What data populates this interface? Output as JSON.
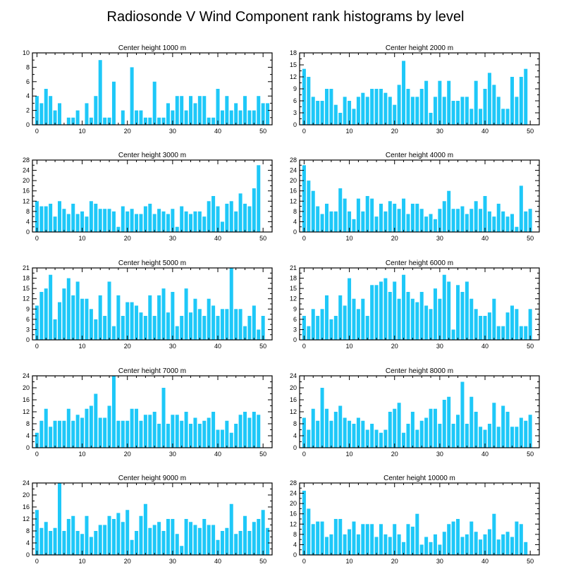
{
  "figure": {
    "title": "Radiosonde V Wind Component rank histograms by level",
    "bar_color": "#1ec8f8"
  },
  "chart_data": [
    {
      "type": "bar",
      "title": "Center height 1000 m",
      "x": [
        0,
        1,
        2,
        3,
        4,
        5,
        6,
        7,
        8,
        9,
        10,
        11,
        12,
        13,
        14,
        15,
        16,
        17,
        18,
        19,
        20,
        21,
        22,
        23,
        24,
        25,
        26,
        27,
        28,
        29,
        30,
        31,
        32,
        33,
        34,
        35,
        36,
        37,
        38,
        39,
        40,
        41,
        42,
        43,
        44,
        45,
        46,
        47,
        48,
        49,
        50,
        51
      ],
      "values": [
        4,
        3,
        5,
        4,
        2,
        3,
        0,
        1,
        1,
        2,
        0,
        3,
        1,
        4,
        9,
        1,
        1,
        6,
        0,
        2,
        0,
        8,
        2,
        2,
        1,
        1,
        6,
        1,
        1,
        3,
        2,
        4,
        4,
        2,
        4,
        3,
        4,
        4,
        1,
        1,
        5,
        2,
        4,
        2,
        3,
        2,
        4,
        2,
        2,
        4,
        3,
        3
      ],
      "xlim": [
        -1,
        52
      ],
      "ylim": [
        0,
        10
      ],
      "yticks": [
        0,
        2,
        4,
        6,
        8,
        10
      ],
      "xticks": [
        0,
        10,
        20,
        30,
        40,
        50
      ],
      "xlabel": "",
      "ylabel": ""
    },
    {
      "type": "bar",
      "title": "Center height 2000 m",
      "x": [
        0,
        1,
        2,
        3,
        4,
        5,
        6,
        7,
        8,
        9,
        10,
        11,
        12,
        13,
        14,
        15,
        16,
        17,
        18,
        19,
        20,
        21,
        22,
        23,
        24,
        25,
        26,
        27,
        28,
        29,
        30,
        31,
        32,
        33,
        34,
        35,
        36,
        37,
        38,
        39,
        40,
        41,
        42,
        43,
        44,
        45,
        46,
        47,
        48,
        49,
        50,
        51
      ],
      "values": [
        14,
        12,
        7,
        6,
        6,
        9,
        9,
        5,
        3,
        7,
        6,
        4,
        7,
        8,
        7,
        9,
        9,
        9,
        8,
        7,
        5,
        10,
        16,
        9,
        7,
        7,
        9,
        11,
        3,
        7,
        11,
        7,
        11,
        6,
        6,
        7,
        7,
        4,
        11,
        4,
        9,
        13,
        10,
        7,
        4,
        4,
        12,
        7,
        12,
        14,
        0,
        0
      ],
      "xlim": [
        -1,
        52
      ],
      "ylim": [
        0,
        18
      ],
      "yticks": [
        0,
        3,
        6,
        9,
        12,
        15,
        18
      ],
      "xticks": [
        0,
        10,
        20,
        30,
        40,
        50
      ],
      "xlabel": "",
      "ylabel": ""
    },
    {
      "type": "bar",
      "title": "Center height 3000 m",
      "x": [
        0,
        1,
        2,
        3,
        4,
        5,
        6,
        7,
        8,
        9,
        10,
        11,
        12,
        13,
        14,
        15,
        16,
        17,
        18,
        19,
        20,
        21,
        22,
        23,
        24,
        25,
        26,
        27,
        28,
        29,
        30,
        31,
        32,
        33,
        34,
        35,
        36,
        37,
        38,
        39,
        40,
        41,
        42,
        43,
        44,
        45,
        46,
        47,
        48,
        49,
        50,
        51
      ],
      "values": [
        12,
        10,
        10,
        11,
        6,
        12,
        9,
        7,
        11,
        7,
        8,
        6,
        12,
        11,
        9,
        9,
        9,
        8,
        2,
        10,
        8,
        9,
        7,
        7,
        10,
        11,
        7,
        9,
        8,
        7,
        9,
        2,
        10,
        8,
        7,
        8,
        8,
        6,
        12,
        14,
        10,
        4,
        11,
        12,
        8,
        15,
        11,
        10,
        17,
        26,
        0,
        0
      ],
      "xlim": [
        -1,
        52
      ],
      "ylim": [
        0,
        28
      ],
      "yticks": [
        0,
        4,
        8,
        12,
        16,
        20,
        24,
        28
      ],
      "xticks": [
        0,
        10,
        20,
        30,
        40,
        50
      ],
      "xlabel": "",
      "ylabel": ""
    },
    {
      "type": "bar",
      "title": "Center height 4000 m",
      "x": [
        0,
        1,
        2,
        3,
        4,
        5,
        6,
        7,
        8,
        9,
        10,
        11,
        12,
        13,
        14,
        15,
        16,
        17,
        18,
        19,
        20,
        21,
        22,
        23,
        24,
        25,
        26,
        27,
        28,
        29,
        30,
        31,
        32,
        33,
        34,
        35,
        36,
        37,
        38,
        39,
        40,
        41,
        42,
        43,
        44,
        45,
        46,
        47,
        48,
        49,
        50,
        51
      ],
      "values": [
        26,
        20,
        16,
        10,
        7,
        11,
        8,
        8,
        17,
        13,
        8,
        5,
        13,
        8,
        14,
        13,
        6,
        11,
        8,
        12,
        11,
        9,
        13,
        7,
        11,
        11,
        9,
        6,
        7,
        5,
        9,
        12,
        16,
        9,
        9,
        10,
        7,
        9,
        12,
        9,
        14,
        8,
        6,
        11,
        8,
        6,
        7,
        2,
        18,
        8,
        9,
        0
      ],
      "xlim": [
        -1,
        52
      ],
      "ylim": [
        0,
        28
      ],
      "yticks": [
        0,
        4,
        8,
        12,
        16,
        20,
        24,
        28
      ],
      "xticks": [
        0,
        10,
        20,
        30,
        40,
        50
      ],
      "xlabel": "",
      "ylabel": ""
    },
    {
      "type": "bar",
      "title": "Center height 5000 m",
      "x": [
        0,
        1,
        2,
        3,
        4,
        5,
        6,
        7,
        8,
        9,
        10,
        11,
        12,
        13,
        14,
        15,
        16,
        17,
        18,
        19,
        20,
        21,
        22,
        23,
        24,
        25,
        26,
        27,
        28,
        29,
        30,
        31,
        32,
        33,
        34,
        35,
        36,
        37,
        38,
        39,
        40,
        41,
        42,
        43,
        44,
        45,
        46,
        47,
        48,
        49,
        50,
        51
      ],
      "values": [
        10,
        14,
        15,
        19,
        6,
        11,
        15,
        18,
        13,
        17,
        12,
        12,
        9,
        6,
        13,
        7,
        17,
        4,
        13,
        7,
        11,
        11,
        10,
        8,
        7,
        13,
        7,
        13,
        15,
        8,
        14,
        4,
        7,
        15,
        8,
        12,
        9,
        7,
        12,
        10,
        7,
        9,
        9,
        21,
        9,
        9,
        4,
        7,
        10,
        3,
        7,
        0
      ],
      "xlim": [
        -1,
        52
      ],
      "ylim": [
        0,
        21
      ],
      "yticks": [
        0,
        3,
        6,
        9,
        12,
        15,
        18,
        21
      ],
      "xticks": [
        0,
        10,
        20,
        30,
        40,
        50
      ],
      "xlabel": "",
      "ylabel": ""
    },
    {
      "type": "bar",
      "title": "Center height 6000 m",
      "x": [
        0,
        1,
        2,
        3,
        4,
        5,
        6,
        7,
        8,
        9,
        10,
        11,
        12,
        13,
        14,
        15,
        16,
        17,
        18,
        19,
        20,
        21,
        22,
        23,
        24,
        25,
        26,
        27,
        28,
        29,
        30,
        31,
        32,
        33,
        34,
        35,
        36,
        37,
        38,
        39,
        40,
        41,
        42,
        43,
        44,
        45,
        46,
        47,
        48,
        49,
        50,
        51
      ],
      "values": [
        7,
        4,
        9,
        7,
        9,
        13,
        6,
        7,
        13,
        10,
        18,
        12,
        9,
        12,
        7,
        16,
        16,
        17,
        18,
        14,
        17,
        12,
        19,
        14,
        12,
        11,
        14,
        10,
        9,
        15,
        12,
        19,
        17,
        3,
        16,
        14,
        17,
        12,
        9,
        7,
        7,
        8,
        12,
        4,
        4,
        8,
        10,
        9,
        4,
        4,
        9,
        0
      ],
      "xlim": [
        -1,
        52
      ],
      "ylim": [
        0,
        21
      ],
      "yticks": [
        0,
        3,
        6,
        9,
        12,
        15,
        18,
        21
      ],
      "xticks": [
        0,
        10,
        20,
        30,
        40,
        50
      ],
      "xlabel": "",
      "ylabel": ""
    },
    {
      "type": "bar",
      "title": "Center height 7000 m",
      "x": [
        0,
        1,
        2,
        3,
        4,
        5,
        6,
        7,
        8,
        9,
        10,
        11,
        12,
        13,
        14,
        15,
        16,
        17,
        18,
        19,
        20,
        21,
        22,
        23,
        24,
        25,
        26,
        27,
        28,
        29,
        30,
        31,
        32,
        33,
        34,
        35,
        36,
        37,
        38,
        39,
        40,
        41,
        42,
        43,
        44,
        45,
        46,
        47,
        48,
        49,
        50,
        51
      ],
      "values": [
        5,
        9,
        13,
        7,
        9,
        9,
        9,
        13,
        9,
        11,
        10,
        13,
        14,
        18,
        10,
        10,
        14,
        24,
        9,
        9,
        9,
        13,
        13,
        9,
        11,
        11,
        12,
        8,
        20,
        8,
        11,
        11,
        9,
        12,
        8,
        10,
        8,
        9,
        10,
        12,
        6,
        6,
        9,
        5,
        8,
        11,
        12,
        10,
        12,
        11,
        0,
        0
      ],
      "xlim": [
        -1,
        52
      ],
      "ylim": [
        0,
        24
      ],
      "yticks": [
        0,
        4,
        8,
        12,
        16,
        20,
        24
      ],
      "xticks": [
        0,
        10,
        20,
        30,
        40,
        50
      ],
      "xlabel": "",
      "ylabel": ""
    },
    {
      "type": "bar",
      "title": "Center height 8000 m",
      "x": [
        0,
        1,
        2,
        3,
        4,
        5,
        6,
        7,
        8,
        9,
        10,
        11,
        12,
        13,
        14,
        15,
        16,
        17,
        18,
        19,
        20,
        21,
        22,
        23,
        24,
        25,
        26,
        27,
        28,
        29,
        30,
        31,
        32,
        33,
        34,
        35,
        36,
        37,
        38,
        39,
        40,
        41,
        42,
        43,
        44,
        45,
        46,
        47,
        48,
        49,
        50,
        51
      ],
      "values": [
        10,
        6,
        13,
        9,
        20,
        13,
        9,
        12,
        14,
        10,
        9,
        8,
        10,
        9,
        6,
        8,
        6,
        5,
        6,
        12,
        13,
        15,
        5,
        8,
        12,
        6,
        9,
        10,
        13,
        13,
        8,
        16,
        17,
        8,
        11,
        22,
        8,
        17,
        12,
        7,
        6,
        8,
        15,
        7,
        14,
        12,
        7,
        7,
        10,
        9,
        11,
        0
      ],
      "xlim": [
        -1,
        52
      ],
      "ylim": [
        0,
        24
      ],
      "yticks": [
        0,
        4,
        8,
        12,
        16,
        20,
        24
      ],
      "xticks": [
        0,
        10,
        20,
        30,
        40,
        50
      ],
      "xlabel": "",
      "ylabel": ""
    },
    {
      "type": "bar",
      "title": "Center height 9000 m",
      "x": [
        0,
        1,
        2,
        3,
        4,
        5,
        6,
        7,
        8,
        9,
        10,
        11,
        12,
        13,
        14,
        15,
        16,
        17,
        18,
        19,
        20,
        21,
        22,
        23,
        24,
        25,
        26,
        27,
        28,
        29,
        30,
        31,
        32,
        33,
        34,
        35,
        36,
        37,
        38,
        39,
        40,
        41,
        42,
        43,
        44,
        45,
        46,
        47,
        48,
        49,
        50,
        51
      ],
      "values": [
        15,
        9,
        11,
        8,
        9,
        24,
        8,
        12,
        13,
        8,
        7,
        13,
        6,
        8,
        10,
        10,
        13,
        12,
        14,
        11,
        15,
        5,
        8,
        13,
        17,
        9,
        10,
        11,
        8,
        12,
        12,
        7,
        3,
        12,
        11,
        10,
        9,
        12,
        10,
        10,
        5,
        8,
        9,
        17,
        7,
        8,
        13,
        8,
        11,
        12,
        15,
        9
      ],
      "xlim": [
        -1,
        52
      ],
      "ylim": [
        0,
        24
      ],
      "yticks": [
        0,
        4,
        8,
        12,
        16,
        20,
        24
      ],
      "xticks": [
        0,
        10,
        20,
        30,
        40,
        50
      ],
      "xlabel": "",
      "ylabel": ""
    },
    {
      "type": "bar",
      "title": "Center height 10000 m",
      "x": [
        0,
        1,
        2,
        3,
        4,
        5,
        6,
        7,
        8,
        9,
        10,
        11,
        12,
        13,
        14,
        15,
        16,
        17,
        18,
        19,
        20,
        21,
        22,
        23,
        24,
        25,
        26,
        27,
        28,
        29,
        30,
        31,
        32,
        33,
        34,
        35,
        36,
        37,
        38,
        39,
        40,
        41,
        42,
        43,
        44,
        45,
        46,
        47,
        48,
        49,
        50,
        51
      ],
      "values": [
        25,
        18,
        12,
        13,
        13,
        7,
        8,
        14,
        14,
        8,
        10,
        13,
        8,
        12,
        12,
        12,
        7,
        12,
        8,
        7,
        12,
        8,
        5,
        12,
        11,
        16,
        4,
        7,
        5,
        8,
        4,
        9,
        12,
        13,
        14,
        7,
        8,
        13,
        9,
        6,
        8,
        10,
        16,
        6,
        8,
        9,
        7,
        13,
        12,
        5,
        0,
        0
      ],
      "xlim": [
        -1,
        52
      ],
      "ylim": [
        0,
        28
      ],
      "yticks": [
        0,
        4,
        8,
        12,
        16,
        20,
        24,
        28
      ],
      "xticks": [
        0,
        10,
        20,
        30,
        40,
        50
      ],
      "xlabel": "",
      "ylabel": ""
    }
  ]
}
